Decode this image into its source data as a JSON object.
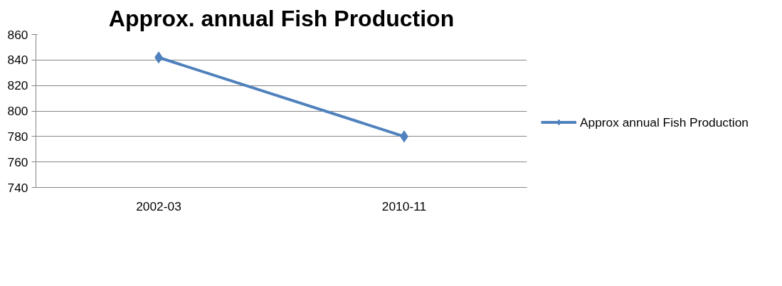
{
  "chart_data": {
    "type": "line",
    "title": "Approx. annual Fish Production",
    "categories": [
      "2002-03",
      "2010-11"
    ],
    "series": [
      {
        "name": "Approx annual Fish Production",
        "color": "#4f81bd",
        "values": [
          842,
          780
        ]
      }
    ],
    "ylim": [
      740,
      860
    ],
    "yticks": [
      740,
      760,
      780,
      800,
      820,
      840,
      860
    ],
    "grid": "y",
    "legend": "right",
    "marker": "diamond",
    "line_style": "solid"
  }
}
